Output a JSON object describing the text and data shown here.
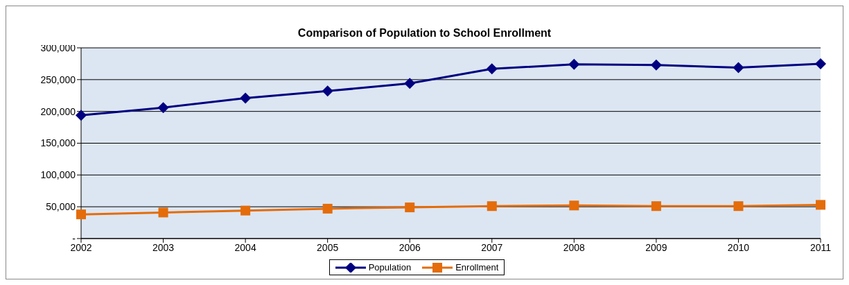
{
  "chart_data": {
    "type": "line",
    "title": "Comparison of Population to School Enrollment",
    "categories": [
      "2002",
      "2003",
      "2004",
      "2005",
      "2006",
      "2007",
      "2008",
      "2009",
      "2010",
      "2011"
    ],
    "series": [
      {
        "name": "Population",
        "color": "#000080",
        "marker": "diamond",
        "values": [
          194000,
          206000,
          221000,
          232000,
          244000,
          267000,
          274000,
          273000,
          269000,
          275000
        ]
      },
      {
        "name": "Enrollment",
        "color": "#e46c0a",
        "marker": "square",
        "values": [
          38000,
          41000,
          44000,
          47000,
          49000,
          51000,
          52000,
          51000,
          51000,
          53000
        ]
      }
    ],
    "ylim": [
      0,
      300000
    ],
    "yticks": [
      {
        "value": 0,
        "label": "-"
      },
      {
        "value": 50000,
        "label": "50,000"
      },
      {
        "value": 100000,
        "label": "100,000"
      },
      {
        "value": 150000,
        "label": "150,000"
      },
      {
        "value": 200000,
        "label": "200,000"
      },
      {
        "value": 250000,
        "label": "250,000"
      },
      {
        "value": 300000,
        "label": "300,000"
      }
    ],
    "grid": "y",
    "legend": "bottom"
  }
}
